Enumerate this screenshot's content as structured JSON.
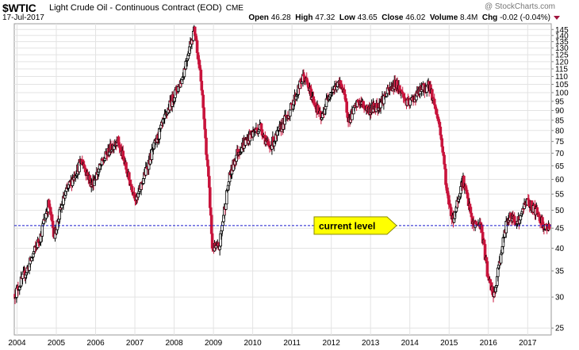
{
  "header": {
    "symbol": "$WTIC",
    "name": "Light Crude Oil - Continuous Contract (EOD)",
    "exchange": "CME",
    "date": "17-Jul-2017",
    "brand": "@ StockCharts.com",
    "open_label": "Open",
    "open": "46.28",
    "high_label": "High",
    "high": "47.32",
    "low_label": "Low",
    "low": "43.65",
    "close_label": "Close",
    "close": "46.02",
    "volume_label": "Volume",
    "volume": "8.4M",
    "chg_label": "Chg",
    "chg": "-0.02 (-0.04%)"
  },
  "colors": {
    "up_candle": "#000000",
    "down_candle": "#c8143c",
    "grid": "#e3e3e3",
    "reference_line": "#1a1acc",
    "callout_fill": "#ffff00"
  },
  "chart_data": {
    "type": "candlestick",
    "yscale": "log",
    "ylim": [
      24,
      150
    ],
    "yticks": [
      25,
      30,
      35,
      40,
      45,
      50,
      55,
      60,
      65,
      70,
      75,
      80,
      85,
      90,
      95,
      100,
      105,
      110,
      115,
      120,
      125,
      130,
      135,
      140,
      145
    ],
    "xlim": [
      2003.93,
      2017.6
    ],
    "xticks": [
      "2004",
      "2005",
      "2006",
      "2007",
      "2008",
      "2009",
      "2010",
      "2011",
      "2012",
      "2013",
      "2014",
      "2015",
      "2016",
      "2017"
    ],
    "grid": true,
    "reference_line": {
      "value": 45.7,
      "label": "current level"
    },
    "price_path": [
      [
        2003.95,
        30.5
      ],
      [
        2004.3,
        36
      ],
      [
        2004.6,
        43
      ],
      [
        2004.8,
        52
      ],
      [
        2004.95,
        43
      ],
      [
        2005.2,
        54
      ],
      [
        2005.65,
        67
      ],
      [
        2005.9,
        58
      ],
      [
        2006.3,
        70
      ],
      [
        2006.55,
        76
      ],
      [
        2006.85,
        60
      ],
      [
        2007.05,
        53
      ],
      [
        2007.3,
        64
      ],
      [
        2007.5,
        73
      ],
      [
        2007.75,
        85
      ],
      [
        2007.95,
        96
      ],
      [
        2008.2,
        108
      ],
      [
        2008.45,
        138
      ],
      [
        2008.52,
        145
      ],
      [
        2008.65,
        115
      ],
      [
        2008.8,
        75
      ],
      [
        2008.97,
        40
      ],
      [
        2009.15,
        40
      ],
      [
        2009.4,
        60
      ],
      [
        2009.6,
        70
      ],
      [
        2009.95,
        78
      ],
      [
        2010.2,
        82
      ],
      [
        2010.4,
        72
      ],
      [
        2010.6,
        77
      ],
      [
        2010.95,
        90
      ],
      [
        2011.3,
        110
      ],
      [
        2011.5,
        98
      ],
      [
        2011.75,
        85
      ],
      [
        2011.95,
        100
      ],
      [
        2012.25,
        106
      ],
      [
        2012.45,
        85
      ],
      [
        2012.7,
        95
      ],
      [
        2012.95,
        90
      ],
      [
        2013.2,
        93
      ],
      [
        2013.5,
        102
      ],
      [
        2013.65,
        106
      ],
      [
        2013.95,
        93
      ],
      [
        2014.3,
        102
      ],
      [
        2014.5,
        104
      ],
      [
        2014.75,
        83
      ],
      [
        2014.95,
        55
      ],
      [
        2015.1,
        47
      ],
      [
        2015.35,
        60
      ],
      [
        2015.6,
        46
      ],
      [
        2015.8,
        46
      ],
      [
        2016.0,
        33
      ],
      [
        2016.15,
        30
      ],
      [
        2016.5,
        48
      ],
      [
        2016.8,
        47
      ],
      [
        2016.95,
        53
      ],
      [
        2017.2,
        50
      ],
      [
        2017.45,
        45
      ],
      [
        2017.55,
        46
      ]
    ]
  }
}
